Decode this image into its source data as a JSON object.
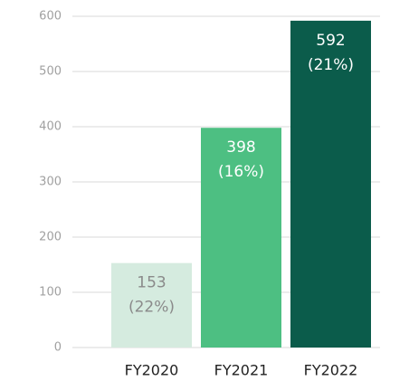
{
  "chart_data": {
    "type": "bar",
    "categories": [
      "FY2020",
      "FY2021",
      "FY2022"
    ],
    "values": [
      153,
      398,
      592
    ],
    "share_labels": [
      "(22%)",
      "(16%)",
      "(21%)"
    ],
    "colors": [
      "#d5ebdf",
      "#4dbf82",
      "#0b5c4b"
    ],
    "label_colors": [
      "#8a8a8a",
      "#ffffff",
      "#ffffff"
    ],
    "ylim": [
      0,
      600
    ],
    "yticks": [
      0,
      100,
      200,
      300,
      400,
      500,
      600
    ],
    "grid": true
  }
}
